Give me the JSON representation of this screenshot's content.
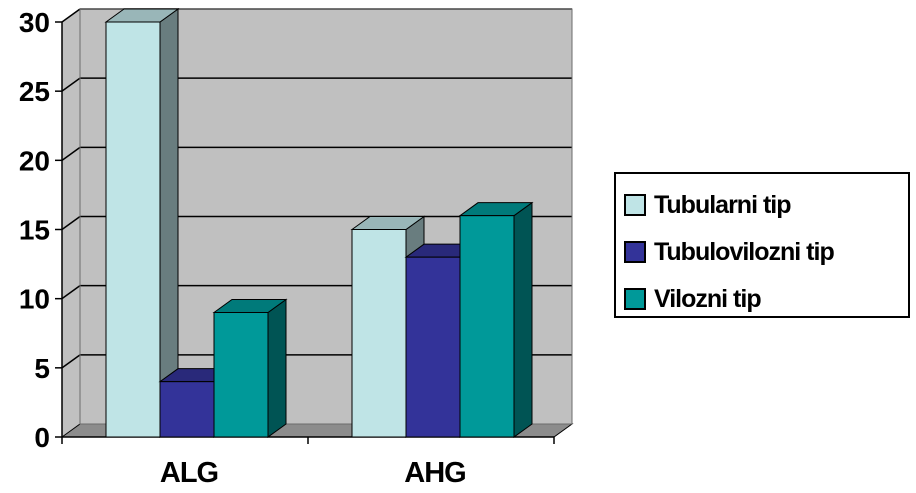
{
  "chart_data": {
    "type": "bar",
    "categories": [
      "ALG",
      "AHG"
    ],
    "series": [
      {
        "name": "Tubularni tip",
        "values": [
          30,
          15
        ],
        "color": "#bfe4e6"
      },
      {
        "name": "Tubulovilozni tip",
        "values": [
          4,
          13
        ],
        "color": "#333399"
      },
      {
        "name": "Vilozni tip",
        "values": [
          9,
          16
        ],
        "color": "#009999"
      }
    ],
    "ylim": [
      0,
      30
    ],
    "yticks": [
      "0",
      "5",
      "10",
      "15",
      "20",
      "25",
      "30"
    ],
    "grid": true,
    "style": "3d",
    "plot_background": "#c0c0c0",
    "legend_position": "right"
  }
}
